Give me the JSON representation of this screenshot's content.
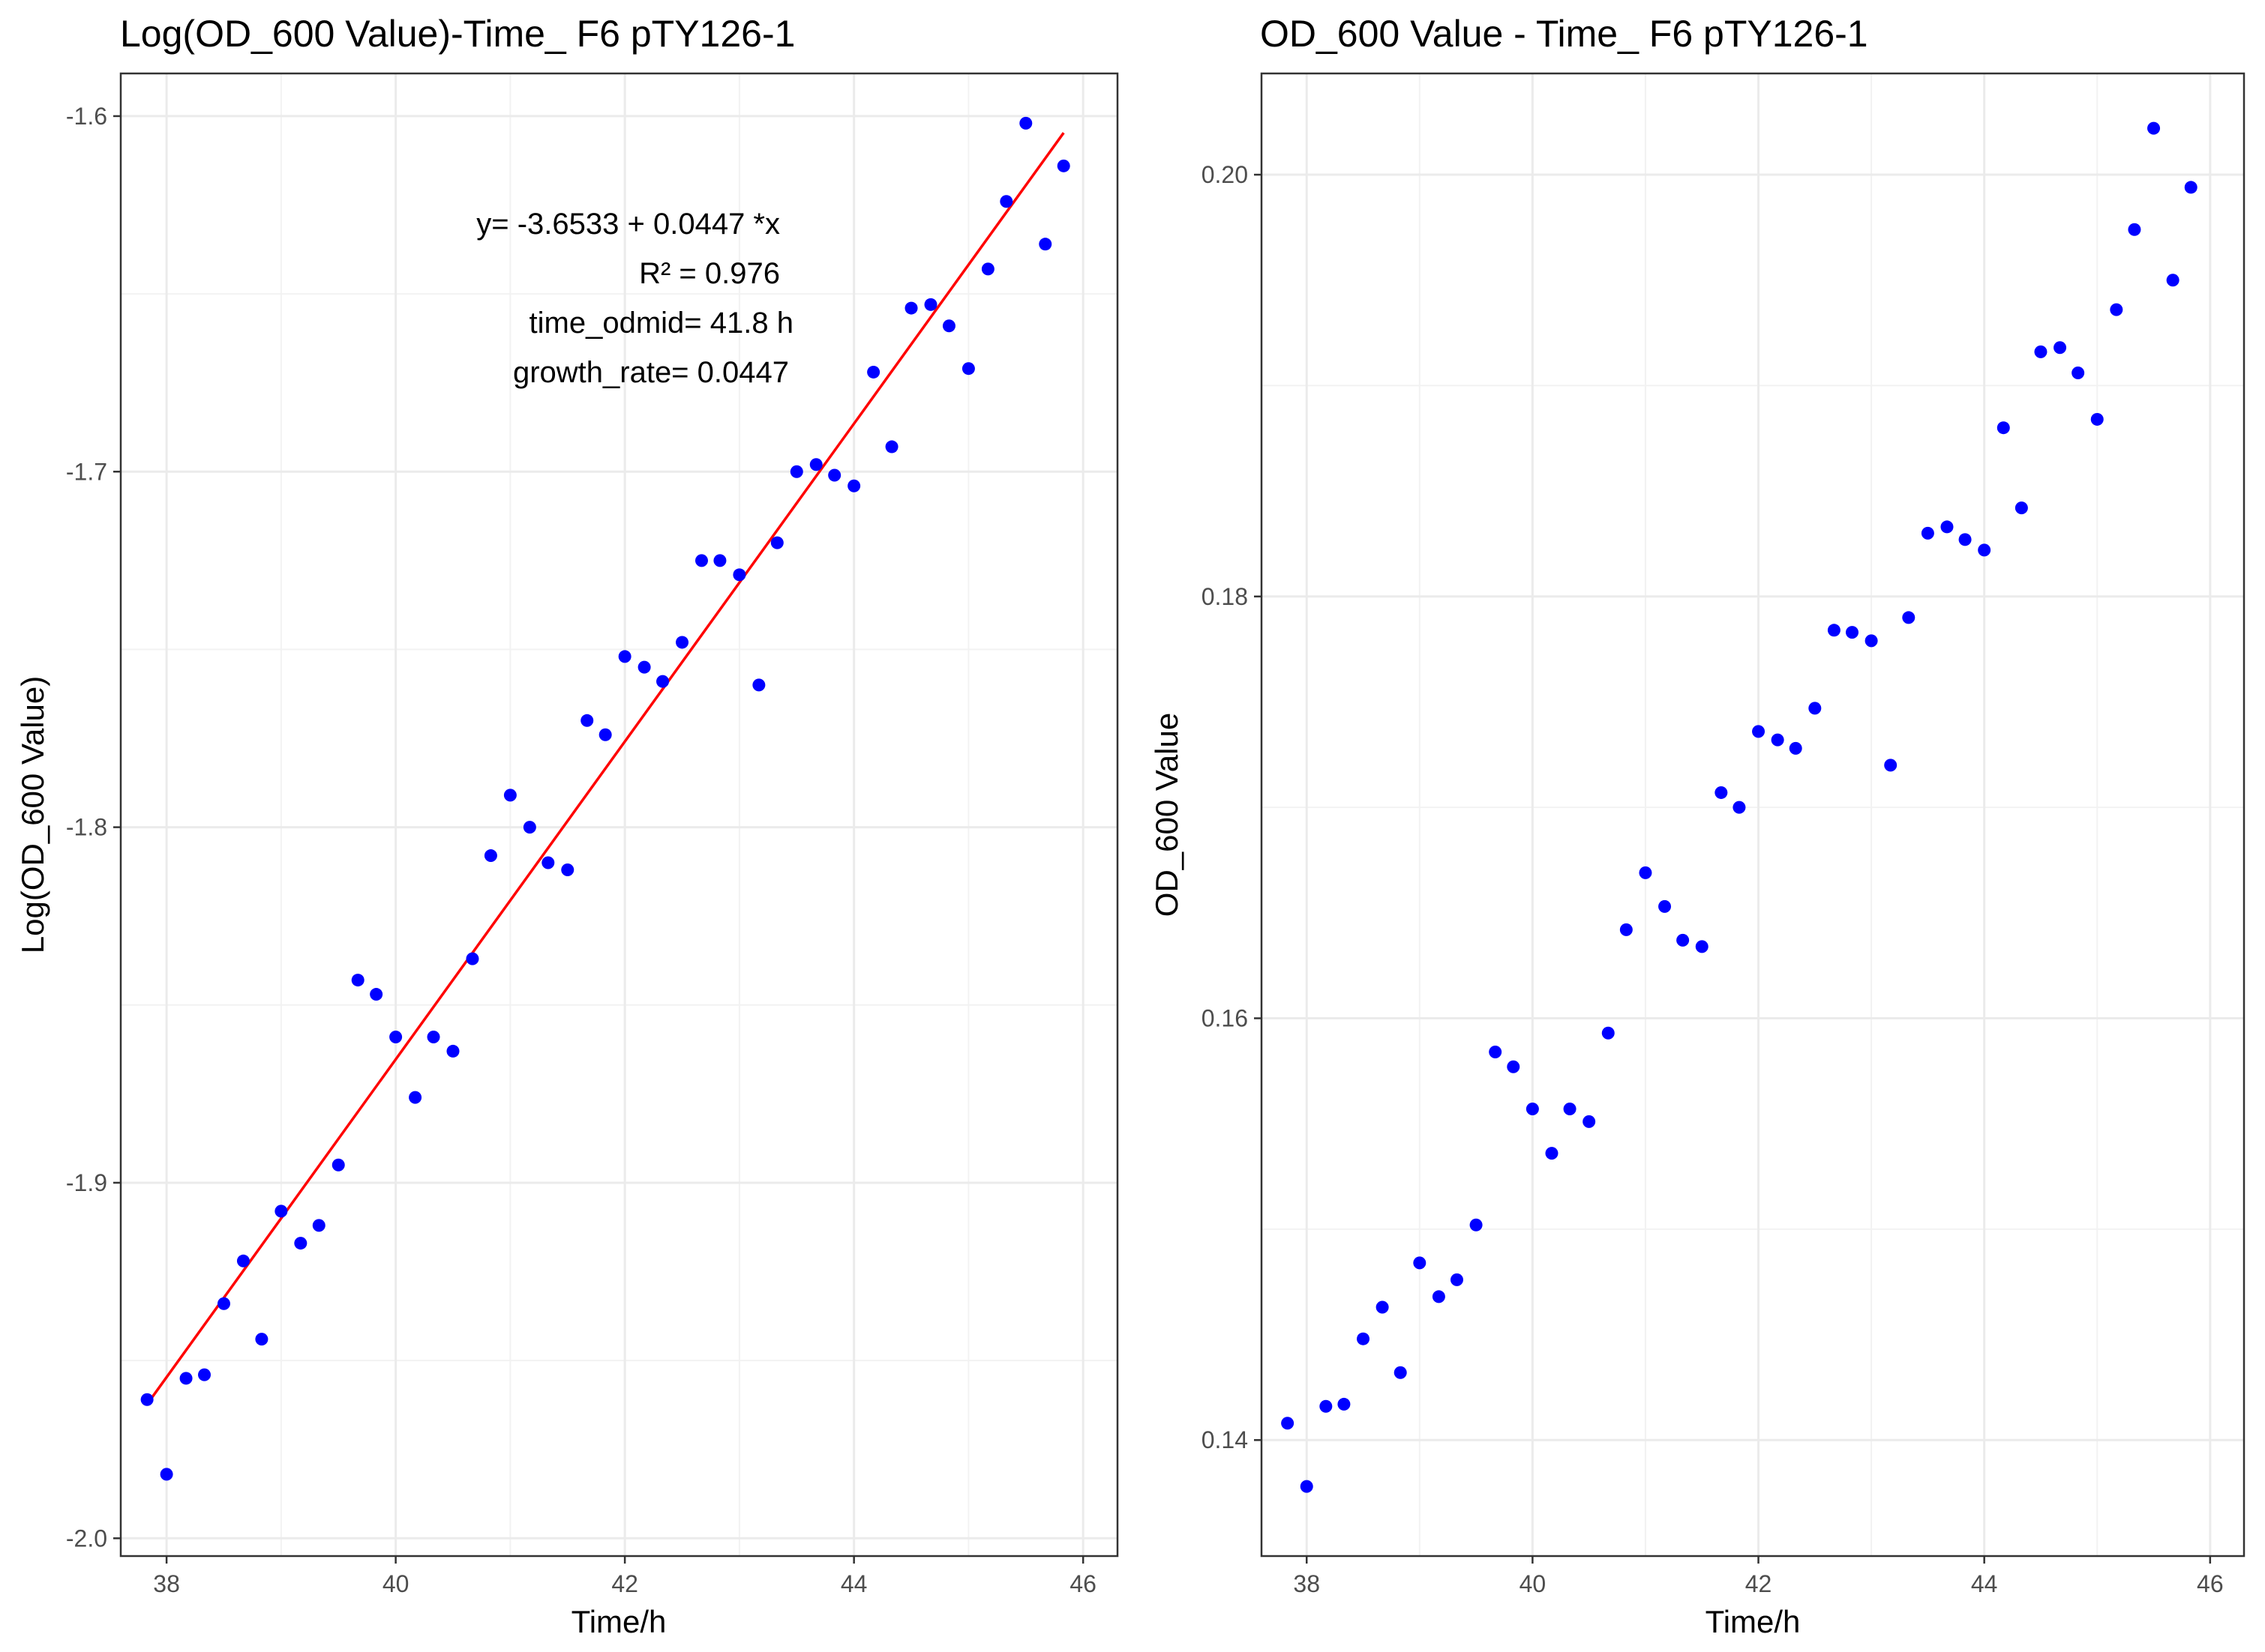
{
  "chart_data": [
    {
      "type": "scatter",
      "title": "Log(OD_600 Value)-Time_ F6 pTY126-1",
      "xlabel": "Time/h",
      "ylabel": "Log(OD_600 Value)",
      "xlim": [
        37.6,
        46.3
      ],
      "ylim": [
        -2.005,
        -1.588
      ],
      "xticks": [
        38,
        40,
        42,
        44,
        46
      ],
      "xtick_labels": [
        "38",
        "40",
        "42",
        "44",
        "46"
      ],
      "yticks": [
        -2.0,
        -1.9,
        -1.8,
        -1.7,
        -1.6
      ],
      "ytick_labels": [
        "-2.0",
        "-1.9",
        "-1.8",
        "-1.7",
        "-1.6"
      ],
      "point_color": "#0000ff",
      "fit_line": {
        "intercept": -3.6533,
        "slope": 0.0447,
        "x_range": [
          37.83,
          45.83
        ],
        "color": "#ff0000"
      },
      "annotations": [
        "y= -3.6533 + 0.0447 *x",
        "R² = 0.976",
        "time_odmid= 41.8 h",
        "growth_rate= 0.0447"
      ],
      "x": [
        37.83,
        38.0,
        38.17,
        38.33,
        38.5,
        38.67,
        38.83,
        39.0,
        39.17,
        39.33,
        39.5,
        39.67,
        39.83,
        40.0,
        40.17,
        40.33,
        40.5,
        40.67,
        40.83,
        41.0,
        41.17,
        41.33,
        41.5,
        41.67,
        41.83,
        42.0,
        42.17,
        42.33,
        42.5,
        42.67,
        42.83,
        43.0,
        43.17,
        43.33,
        43.5,
        43.67,
        43.83,
        44.0,
        44.17,
        44.33,
        44.5,
        44.67,
        44.83,
        45.0,
        45.17,
        45.33,
        45.5,
        45.67,
        45.83
      ],
      "y": [
        -1.961,
        -1.982,
        -1.955,
        -1.954,
        -1.934,
        -1.922,
        -1.944,
        -1.908,
        -1.917,
        -1.912,
        -1.895,
        -1.843,
        -1.847,
        -1.859,
        -1.876,
        -1.859,
        -1.863,
        -1.837,
        -1.808,
        -1.791,
        -1.8,
        -1.81,
        -1.812,
        -1.77,
        -1.774,
        -1.752,
        -1.755,
        -1.759,
        -1.748,
        -1.725,
        -1.725,
        -1.729,
        -1.76,
        -1.72,
        -1.7,
        -1.698,
        -1.701,
        -1.704,
        -1.672,
        -1.693,
        -1.654,
        -1.653,
        -1.659,
        -1.671,
        -1.643,
        -1.624,
        -1.602,
        -1.636,
        -1.614
      ]
    },
    {
      "type": "scatter",
      "title": "OD_600 Value - Time_ F6 pTY126-1",
      "xlabel": "Time/h",
      "ylabel": "OD_600 Value",
      "xlim": [
        37.6,
        46.3
      ],
      "ylim": [
        0.1345,
        0.2048
      ],
      "xticks": [
        38,
        40,
        42,
        44,
        46
      ],
      "xtick_labels": [
        "38",
        "40",
        "42",
        "44",
        "46"
      ],
      "yticks": [
        0.14,
        0.16,
        0.18,
        0.2
      ],
      "ytick_labels": [
        "0.14",
        "0.16",
        "0.18",
        "0.20"
      ],
      "point_color": "#0000ff",
      "x": [
        37.83,
        38.0,
        38.17,
        38.33,
        38.5,
        38.67,
        38.83,
        39.0,
        39.17,
        39.33,
        39.5,
        39.67,
        39.83,
        40.0,
        40.17,
        40.33,
        40.5,
        40.67,
        40.83,
        41.0,
        41.17,
        41.33,
        41.5,
        41.67,
        41.83,
        42.0,
        42.17,
        42.33,
        42.5,
        42.67,
        42.83,
        43.0,
        43.17,
        43.33,
        43.5,
        43.67,
        43.83,
        44.0,
        44.17,
        44.33,
        44.5,
        44.67,
        44.83,
        45.0,
        45.17,
        45.33,
        45.5,
        45.67,
        45.83
      ],
      "y": [
        0.1408,
        0.1378,
        0.1416,
        0.1417,
        0.1448,
        0.1463,
        0.1432,
        0.1484,
        0.1468,
        0.1476,
        0.1502,
        0.1584,
        0.1577,
        0.1557,
        0.1536,
        0.1557,
        0.1551,
        0.1593,
        0.1642,
        0.1669,
        0.1653,
        0.1637,
        0.1634,
        0.1707,
        0.17,
        0.1736,
        0.1732,
        0.1728,
        0.1747,
        0.1784,
        0.1783,
        0.1779,
        0.172,
        0.179,
        0.183,
        0.1833,
        0.1827,
        0.1822,
        0.188,
        0.1842,
        0.1916,
        0.1918,
        0.1906,
        0.1884,
        0.1936,
        0.1974,
        0.2022,
        0.195,
        0.1994
      ]
    }
  ]
}
